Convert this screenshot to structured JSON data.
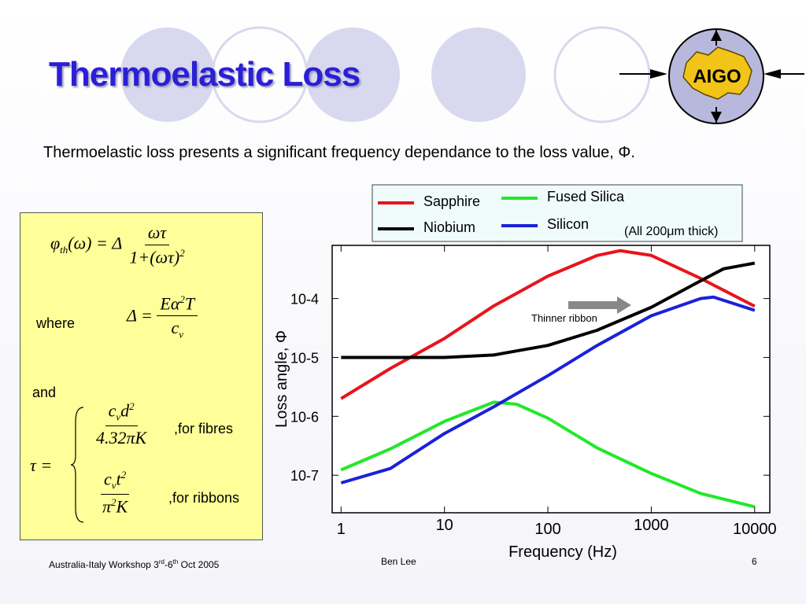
{
  "title": "Thermoelastic Loss",
  "body": "Thermoelastic loss presents a significant frequency dependance to the loss value, Φ.",
  "logo": "AIGO",
  "formulas": {
    "eq1": {
      "symbol": "φ",
      "sub": "th",
      "args": "(ω) = Δ",
      "num": "ωτ",
      "den": "1+(ωτ)",
      "den_exp": "2"
    },
    "where": "where",
    "eq2": {
      "lhs": "Δ =",
      "num": "Eα",
      "num_exp": "2",
      "num_tail": "T",
      "den": "c",
      "den_sub": "v"
    },
    "and": "and",
    "eq3": {
      "lhs": "τ =",
      "fibre_num": "c",
      "fibre_num_sub": "v",
      "fibre_num_tail": "d",
      "fibre_num_exp": "2",
      "fibre_den": "4.32πK",
      "fibre_note": ",for fibres",
      "ribbon_num": "c",
      "ribbon_num_sub": "v",
      "ribbon_num_tail": "t",
      "ribbon_num_exp": "2",
      "ribbon_den": "π",
      "ribbon_den_exp": "2",
      "ribbon_den_tail": "K",
      "ribbon_note": ",for ribbons"
    }
  },
  "chart_data": {
    "type": "line",
    "x_label": "Frequency (Hz)",
    "y_label": "Loss angle, Φ",
    "log_x": true,
    "log_y": true,
    "xlim": [
      0.82,
      14000
    ],
    "ylim": [
      2.3e-08,
      0.0008
    ],
    "xticks": [
      1,
      10,
      100,
      1000,
      10000
    ],
    "yticks": [
      {
        "value": 0.0001,
        "label": "10-4"
      },
      {
        "value": 1e-05,
        "label": "10-5"
      },
      {
        "value": 1e-06,
        "label": "10-6"
      },
      {
        "value": 1e-07,
        "label": "10-7"
      }
    ],
    "legend_note": "(All 200μm thick)",
    "annotation": "Thinner ribbon",
    "series": [
      {
        "name": "Sapphire",
        "color": "#e8141c",
        "x": [
          1,
          3,
          10,
          30,
          100,
          300,
          500,
          1000,
          3000,
          10000
        ],
        "values": [
          2e-06,
          6.5e-06,
          2.1e-05,
          7.5e-05,
          0.00024,
          0.00054,
          0.00065,
          0.00054,
          0.00022,
          7.4e-05
        ]
      },
      {
        "name": "Fused Silica",
        "color": "#22e82a",
        "x": [
          1,
          3,
          10,
          30,
          50,
          100,
          300,
          1000,
          3000,
          10000
        ],
        "values": [
          1.23e-07,
          2.8e-07,
          8.2e-07,
          1.74e-06,
          1.6e-06,
          9.3e-07,
          2.9e-07,
          1.07e-07,
          4.9e-08,
          2.9e-08
        ]
      },
      {
        "name": "Niobium",
        "color": "#000000",
        "x": [
          1,
          10,
          30,
          100,
          300,
          1000,
          3000,
          5000,
          10000
        ],
        "values": [
          1e-05,
          1e-05,
          1.1e-05,
          1.6e-05,
          2.9e-05,
          7.1e-05,
          0.0002,
          0.00032,
          0.0004
        ]
      },
      {
        "name": "Silicon",
        "color": "#1a22d8",
        "x": [
          1,
          3,
          10,
          30,
          100,
          300,
          1000,
          3000,
          4000,
          10000
        ],
        "values": [
          7.4e-08,
          1.3e-07,
          5.1e-07,
          1.45e-06,
          4.9e-06,
          1.6e-05,
          5.1e-05,
          0.0001,
          0.000106,
          6.3e-05
        ]
      }
    ]
  },
  "footer": {
    "left": [
      "Australia-Italy Workshop 3",
      "rd",
      "-6",
      "th",
      " Oct 2005"
    ],
    "center": "Ben Lee",
    "right": "6"
  }
}
